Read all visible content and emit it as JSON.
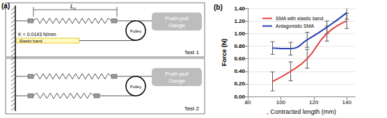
{
  "diagram": {
    "label": "(a)",
    "length_label": "L",
    "length_subscript": "c",
    "stiffness": "K = 0.0143 N/mm",
    "band": "Elastic band",
    "tests": [
      {
        "name": "Test 1",
        "gauge": "Push-pull Gauge",
        "pulley": "Pulley"
      },
      {
        "name": "Test 2",
        "gauge": "Push-pull Gauge",
        "pulley": "Pulley"
      }
    ]
  },
  "chart_data": {
    "type": "line",
    "title": "(b)",
    "x_label": ", Contracted length (mm)",
    "y_label": "Force (N)",
    "x": [
      95,
      106,
      116,
      128,
      140
    ],
    "series": [
      {
        "name": "SMA with elastic band",
        "color": "#e0403a",
        "values": [
          0.24,
          0.4,
          0.6,
          1.0,
          1.2
        ],
        "errors": [
          0.15,
          0.15,
          0.15,
          0.12,
          0.12
        ]
      },
      {
        "name": "Antagonistic SMA",
        "color": "#2a3fb0",
        "values": [
          0.77,
          0.76,
          0.9,
          1.1,
          1.33
        ],
        "errors": [
          0.1,
          0.1,
          0.12,
          0.1,
          0.1
        ]
      }
    ],
    "xlim": [
      80,
      145
    ],
    "xticks": [
      80,
      100,
      120,
      140
    ],
    "ylim": [
      0,
      1.4
    ],
    "yticks": [
      {
        "value": 0,
        "label": "0.00"
      },
      {
        "value": 0.2,
        "label": "0.20"
      },
      {
        "value": 0.4,
        "label": "0.40"
      },
      {
        "value": 0.6,
        "label": "0.60"
      },
      {
        "value": 0.8,
        "label": "0.80"
      },
      {
        "value": 1.0,
        "label": "1.00"
      },
      {
        "value": 1.2,
        "label": "1.20"
      },
      {
        "value": 1.4,
        "label": "1.40"
      }
    ],
    "grid": true,
    "legend": "upper left",
    "line_style": "solid"
  }
}
